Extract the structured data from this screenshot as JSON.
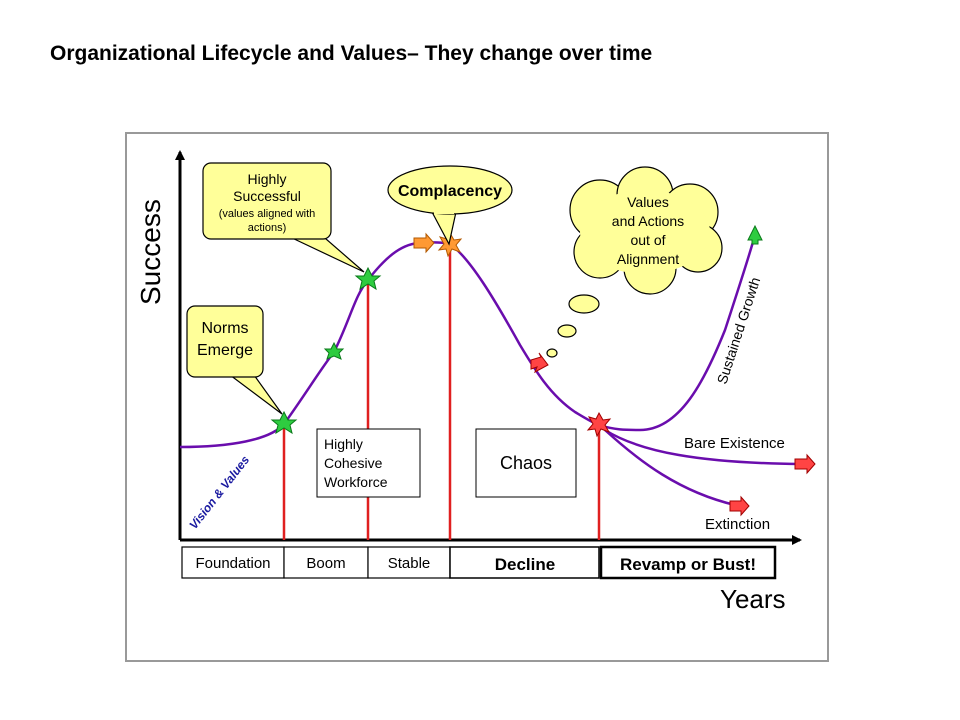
{
  "title": "Organizational Lifecycle and Values– They change over time",
  "axes": {
    "y_label": "Success",
    "x_label": "Years"
  },
  "callouts": {
    "highly_successful": [
      "Highly",
      "Successful",
      "(values aligned with",
      "actions)"
    ],
    "complacency": "Complacency",
    "values_out_of_alignment": [
      "Values",
      "and Actions",
      "out of",
      "Alignment"
    ],
    "norms_emerge": [
      "Norms",
      "Emerge"
    ]
  },
  "boxes": {
    "cohesive": [
      "Highly",
      "Cohesive",
      "Workforce"
    ],
    "chaos": "Chaos"
  },
  "curve_labels": {
    "vision_values": "Vision & Values",
    "sustained_growth": "Sustained Growth",
    "bare_existence": "Bare Existence",
    "extinction": "Extinction"
  },
  "phases": [
    "Foundation",
    "Boom",
    "Stable",
    "Decline",
    "Revamp or Bust!"
  ],
  "colors": {
    "curve": "#6a0dad",
    "milestone_line": "#e02020",
    "callout_fill": "#ffff99",
    "green_marker": "#2ecc40",
    "orange_marker": "#ff9933",
    "red_marker": "#ff4444"
  }
}
